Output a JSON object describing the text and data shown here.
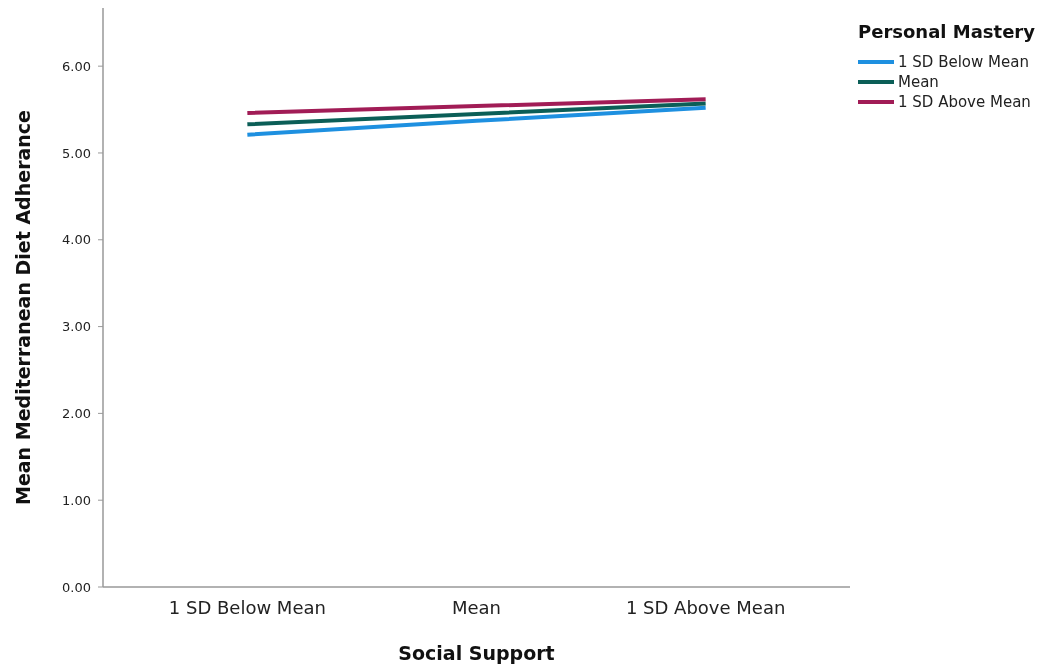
{
  "chart_data": {
    "type": "line",
    "xlabel": "Social Support",
    "ylabel": "Mean Mediterranean Diet Adherance",
    "legend_title": "Personal Mastery",
    "categories": [
      "1 SD Below Mean",
      "Mean",
      "1 SD Above Mean"
    ],
    "series": [
      {
        "name": "1 SD Below Mean",
        "color": "#1e90e0",
        "values": [
          5.21,
          5.37,
          5.52
        ]
      },
      {
        "name": "Mean",
        "color": "#0b5e57",
        "values": [
          5.33,
          5.45,
          5.57
        ]
      },
      {
        "name": "1 SD Above Mean",
        "color": "#a11c56",
        "values": [
          5.46,
          5.54,
          5.62
        ]
      }
    ],
    "ylim": [
      0,
      6.67
    ],
    "yticks": [
      {
        "value": 0,
        "label": "0.00"
      },
      {
        "value": 1,
        "label": "1.00"
      },
      {
        "value": 2,
        "label": "2.00"
      },
      {
        "value": 3,
        "label": "3.00"
      },
      {
        "value": 4,
        "label": "4.00"
      },
      {
        "value": 5,
        "label": "5.00"
      },
      {
        "value": 6,
        "label": "6.00"
      }
    ],
    "grid": false,
    "legend": "top right",
    "marker": "none",
    "line_style": "solid"
  }
}
